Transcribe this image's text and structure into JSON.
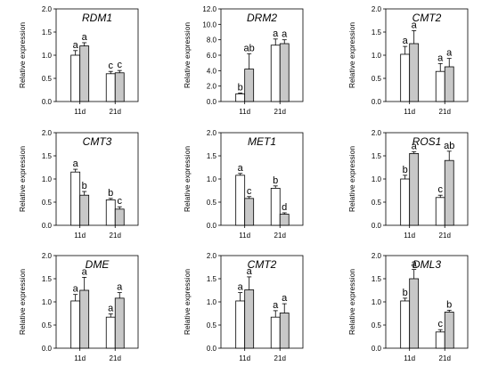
{
  "figure_title": "",
  "chart_data": [
    {
      "type": "bar",
      "title": "RDM1",
      "ylabel": "Relative expression",
      "categories": [
        "11d",
        "21d"
      ],
      "ylim": [
        0,
        2.0
      ],
      "yticks": [
        "0.0",
        "0.5",
        "1.0",
        "1.5",
        "2.0"
      ],
      "series": [
        {
          "color": "#ffffff",
          "values": [
            1.0,
            0.6
          ],
          "errors": [
            0.1,
            0.05
          ]
        },
        {
          "color": "#c8c8c8",
          "values": [
            1.2,
            0.62
          ],
          "errors": [
            0.07,
            0.05
          ]
        }
      ],
      "letters": [
        [
          "a",
          "c"
        ],
        [
          "a",
          "c"
        ]
      ]
    },
    {
      "type": "bar",
      "title": "DRM2",
      "ylabel": "Relative expression",
      "categories": [
        "11d",
        "21d"
      ],
      "ylim": [
        0,
        12.0
      ],
      "yticks": [
        "0.0",
        "2.0",
        "4.0",
        "6.0",
        "8.0",
        "10.0",
        "12.0"
      ],
      "series": [
        {
          "color": "#ffffff",
          "values": [
            1.0,
            7.3
          ],
          "errors": [
            0.1,
            0.8
          ]
        },
        {
          "color": "#c8c8c8",
          "values": [
            4.2,
            7.5
          ],
          "errors": [
            2.0,
            0.5
          ]
        }
      ],
      "letters": [
        [
          "b",
          "a"
        ],
        [
          "ab",
          "a"
        ]
      ]
    },
    {
      "type": "bar",
      "title": "CMT2",
      "ylabel": "Relative expression",
      "categories": [
        "11d",
        "21d"
      ],
      "ylim": [
        0,
        2.0
      ],
      "yticks": [
        "0.0",
        "0.5",
        "1.0",
        "1.5",
        "2.0"
      ],
      "series": [
        {
          "color": "#ffffff",
          "values": [
            1.02,
            0.65
          ],
          "errors": [
            0.17,
            0.17
          ]
        },
        {
          "color": "#c8c8c8",
          "values": [
            1.25,
            0.75
          ],
          "errors": [
            0.28,
            0.18
          ]
        }
      ],
      "letters": [
        [
          "a",
          "a"
        ],
        [
          "a",
          "a"
        ]
      ]
    },
    {
      "type": "bar",
      "title": "CMT3",
      "ylabel": "Relative expression",
      "categories": [
        "11d",
        "21d"
      ],
      "ylim": [
        0,
        2.0
      ],
      "yticks": [
        "0.0",
        "0.5",
        "1.0",
        "1.5",
        "2.0"
      ],
      "series": [
        {
          "color": "#ffffff",
          "values": [
            1.15,
            0.55
          ],
          "errors": [
            0.06,
            0.03
          ]
        },
        {
          "color": "#c8c8c8",
          "values": [
            0.65,
            0.35
          ],
          "errors": [
            0.08,
            0.05
          ]
        }
      ],
      "letters": [
        [
          "a",
          "b"
        ],
        [
          "b",
          "c"
        ]
      ]
    },
    {
      "type": "bar",
      "title": "MET1",
      "ylabel": "Relative expression",
      "categories": [
        "11d",
        "21d"
      ],
      "ylim": [
        0,
        2.0
      ],
      "yticks": [
        "0.0",
        "0.5",
        "1.0",
        "1.5",
        "2.0"
      ],
      "series": [
        {
          "color": "#ffffff",
          "values": [
            1.08,
            0.8
          ],
          "errors": [
            0.04,
            0.05
          ]
        },
        {
          "color": "#c8c8c8",
          "values": [
            0.58,
            0.24
          ],
          "errors": [
            0.04,
            0.03
          ]
        }
      ],
      "letters": [
        [
          "a",
          "b"
        ],
        [
          "c",
          "d"
        ]
      ]
    },
    {
      "type": "bar",
      "title": "ROS1",
      "ylabel": "Relative expression",
      "categories": [
        "11d",
        "21d"
      ],
      "ylim": [
        0,
        2.0
      ],
      "yticks": [
        "0.0",
        "0.5",
        "1.0",
        "1.5",
        "2.0"
      ],
      "series": [
        {
          "color": "#ffffff",
          "values": [
            1.0,
            0.6
          ],
          "errors": [
            0.08,
            0.05
          ]
        },
        {
          "color": "#c8c8c8",
          "values": [
            1.55,
            1.4
          ],
          "errors": [
            0.04,
            0.2
          ]
        }
      ],
      "letters": [
        [
          "b",
          "c"
        ],
        [
          "a",
          "ab"
        ]
      ]
    },
    {
      "type": "bar",
      "title": "DME",
      "ylabel": "Relative expression",
      "categories": [
        "11d",
        "21d"
      ],
      "ylim": [
        0,
        2.0
      ],
      "yticks": [
        "0.0",
        "0.5",
        "1.0",
        "1.5",
        "2.0"
      ],
      "series": [
        {
          "color": "#ffffff",
          "values": [
            1.02,
            0.67
          ],
          "errors": [
            0.14,
            0.07
          ]
        },
        {
          "color": "#c8c8c8",
          "values": [
            1.25,
            1.08
          ],
          "errors": [
            0.28,
            0.12
          ]
        }
      ],
      "letters": [
        [
          "a",
          "a"
        ],
        [
          "a",
          "a"
        ]
      ]
    },
    {
      "type": "bar",
      "title": "CMT2",
      "ylabel": "Relative expression",
      "categories": [
        "11d",
        "21d"
      ],
      "ylim": [
        0,
        2.0
      ],
      "yticks": [
        "0.0",
        "0.5",
        "1.0",
        "1.5",
        "2.0"
      ],
      "series": [
        {
          "color": "#ffffff",
          "values": [
            1.02,
            0.67
          ],
          "errors": [
            0.18,
            0.14
          ]
        },
        {
          "color": "#c8c8c8",
          "values": [
            1.26,
            0.76
          ],
          "errors": [
            0.28,
            0.2
          ]
        }
      ],
      "letters": [
        [
          "a",
          "a"
        ],
        [
          "a",
          "a"
        ]
      ]
    },
    {
      "type": "bar",
      "title": "DML3",
      "ylabel": "Relative expression",
      "categories": [
        "11d",
        "21d"
      ],
      "ylim": [
        0,
        2.0
      ],
      "yticks": [
        "0.0",
        "0.5",
        "1.0",
        "1.5",
        "2.0"
      ],
      "series": [
        {
          "color": "#ffffff",
          "values": [
            1.02,
            0.35
          ],
          "errors": [
            0.06,
            0.05
          ]
        },
        {
          "color": "#c8c8c8",
          "values": [
            1.5,
            0.78
          ],
          "errors": [
            0.2,
            0.04
          ]
        }
      ],
      "letters": [
        [
          "b",
          "c"
        ],
        [
          "a",
          "b"
        ]
      ]
    }
  ]
}
